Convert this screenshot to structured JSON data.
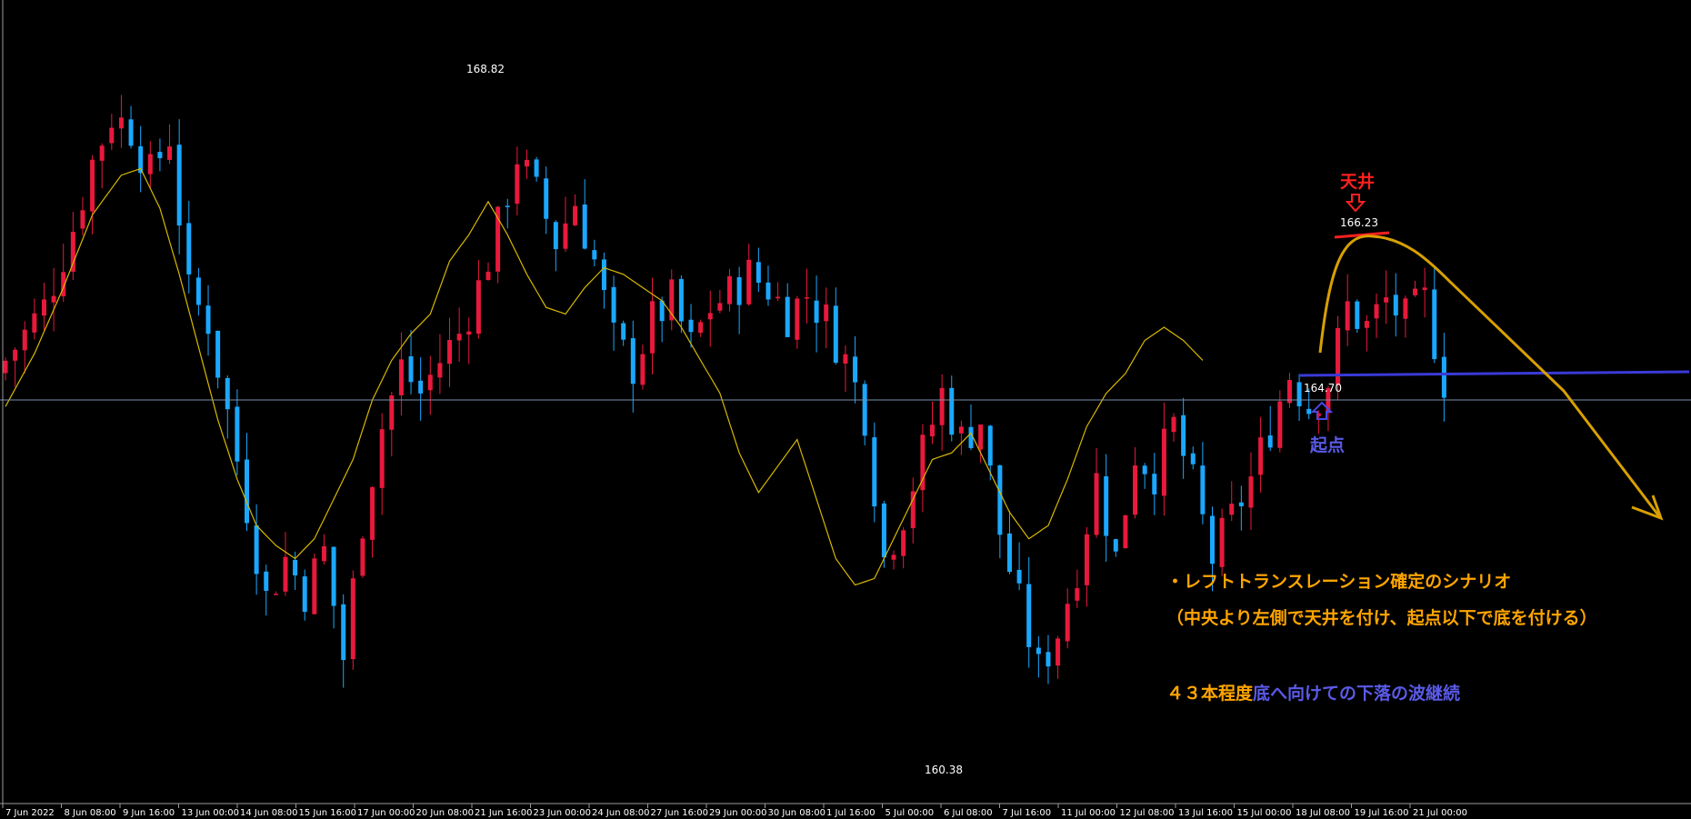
{
  "chart_data": {
    "type": "candlestick",
    "symbol_hint": "",
    "ylim": [
      159.2,
      170.2
    ],
    "x_tick_labels": [
      "7 Jun 2022",
      "8 Jun 08:00",
      "9 Jun 16:00",
      "13 Jun 00:00",
      "14 Jun 08:00",
      "15 Jun 16:00",
      "17 Jun 00:00",
      "20 Jun 08:00",
      "21 Jun 16:00",
      "23 Jun 00:00",
      "24 Jun 08:00",
      "27 Jun 16:00",
      "29 Jun 00:00",
      "30 Jun 08:00",
      "1 Jul 16:00",
      "5 Jul 00:00",
      "6 Jul 08:00",
      "7 Jul 16:00",
      "11 Jul 00:00",
      "12 Jul 08:00",
      "13 Jul 16:00",
      "15 Jul 00:00",
      "18 Jul 08:00",
      "19 Jul 16:00",
      "21 Jul 00:00"
    ],
    "current_price_line": 164.7,
    "close_path": [
      [
        0,
        165.3
      ],
      [
        4,
        166.1
      ],
      [
        7,
        167.3
      ],
      [
        9,
        168.3
      ],
      [
        11,
        169.0
      ],
      [
        13,
        168.8
      ],
      [
        15,
        168.1
      ],
      [
        17,
        168.7
      ],
      [
        19,
        166.3
      ],
      [
        21,
        165.9
      ],
      [
        23,
        164.5
      ],
      [
        25,
        163.1
      ],
      [
        27,
        161.7
      ],
      [
        29,
        162.3
      ],
      [
        31,
        161.8
      ],
      [
        33,
        162.4
      ],
      [
        35,
        160.8
      ],
      [
        37,
        162.9
      ],
      [
        39,
        164.3
      ],
      [
        41,
        165.2
      ],
      [
        43,
        164.8
      ],
      [
        45,
        165.3
      ],
      [
        47,
        165.7
      ],
      [
        49,
        166.4
      ],
      [
        51,
        167.3
      ],
      [
        53,
        168.4
      ],
      [
        55,
        167.8
      ],
      [
        57,
        167.1
      ],
      [
        59,
        167.7
      ],
      [
        61,
        166.8
      ],
      [
        63,
        165.6
      ],
      [
        65,
        165.2
      ],
      [
        67,
        165.9
      ],
      [
        69,
        166.2
      ],
      [
        71,
        165.5
      ],
      [
        73,
        166.1
      ],
      [
        75,
        166.3
      ],
      [
        77,
        166.6
      ],
      [
        79,
        166.4
      ],
      [
        81,
        166.0
      ],
      [
        83,
        166.3
      ],
      [
        85,
        165.9
      ],
      [
        87,
        165.3
      ],
      [
        89,
        164.5
      ],
      [
        91,
        162.3
      ],
      [
        93,
        163.0
      ],
      [
        95,
        163.9
      ],
      [
        97,
        164.8
      ],
      [
        99,
        164.1
      ],
      [
        101,
        164.4
      ],
      [
        103,
        162.7
      ],
      [
        105,
        161.6
      ],
      [
        107,
        160.6
      ],
      [
        109,
        161.2
      ],
      [
        111,
        162.2
      ],
      [
        113,
        163.5
      ],
      [
        115,
        162.3
      ],
      [
        117,
        163.9
      ],
      [
        119,
        163.6
      ],
      [
        121,
        164.3
      ],
      [
        123,
        163.4
      ],
      [
        125,
        162.3
      ],
      [
        127,
        162.9
      ],
      [
        129,
        163.5
      ],
      [
        131,
        164.3
      ],
      [
        133,
        165.1
      ],
      [
        135,
        164.6
      ],
      [
        137,
        165.0
      ],
      [
        139,
        166.1
      ],
      [
        141,
        165.8
      ],
      [
        143,
        166.2
      ],
      [
        145,
        165.9
      ],
      [
        147,
        166.2
      ],
      [
        149,
        165.0
      ]
    ],
    "ma_path": [
      [
        0,
        164.6
      ],
      [
        3,
        165.4
      ],
      [
        6,
        166.4
      ],
      [
        9,
        167.5
      ],
      [
        12,
        168.1
      ],
      [
        14,
        168.2
      ],
      [
        16,
        167.6
      ],
      [
        18,
        166.6
      ],
      [
        20,
        165.5
      ],
      [
        22,
        164.4
      ],
      [
        24,
        163.5
      ],
      [
        26,
        162.8
      ],
      [
        28,
        162.5
      ],
      [
        30,
        162.3
      ],
      [
        32,
        162.6
      ],
      [
        34,
        163.2
      ],
      [
        36,
        163.8
      ],
      [
        38,
        164.7
      ],
      [
        40,
        165.3
      ],
      [
        42,
        165.7
      ],
      [
        44,
        166.0
      ],
      [
        46,
        166.8
      ],
      [
        48,
        167.2
      ],
      [
        50,
        167.7
      ],
      [
        52,
        167.2
      ],
      [
        54,
        166.6
      ],
      [
        56,
        166.1
      ],
      [
        58,
        166.0
      ],
      [
        60,
        166.4
      ],
      [
        62,
        166.7
      ],
      [
        64,
        166.6
      ],
      [
        66,
        166.4
      ],
      [
        68,
        166.2
      ],
      [
        70,
        165.8
      ],
      [
        72,
        165.3
      ],
      [
        74,
        164.8
      ],
      [
        76,
        163.9
      ],
      [
        78,
        163.3
      ],
      [
        80,
        163.7
      ],
      [
        82,
        164.1
      ],
      [
        84,
        163.2
      ],
      [
        86,
        162.3
      ],
      [
        88,
        161.9
      ],
      [
        90,
        162.0
      ],
      [
        92,
        162.6
      ],
      [
        94,
        163.2
      ],
      [
        96,
        163.8
      ],
      [
        98,
        163.9
      ],
      [
        100,
        164.2
      ],
      [
        102,
        163.6
      ],
      [
        104,
        163.0
      ],
      [
        106,
        162.6
      ],
      [
        108,
        162.8
      ],
      [
        110,
        163.5
      ],
      [
        112,
        164.3
      ],
      [
        114,
        164.8
      ],
      [
        116,
        165.1
      ],
      [
        118,
        165.6
      ],
      [
        120,
        165.8
      ],
      [
        122,
        165.6
      ],
      [
        124,
        165.3
      ]
    ],
    "price_labels": [
      {
        "value": "168.82"
      },
      {
        "value": "166.23"
      },
      {
        "value": "164.70"
      },
      {
        "value": "160.38"
      }
    ]
  },
  "annotations": {
    "top_label": "天井",
    "start_label": "起点",
    "scenario_line": "・レフトトランスレーション確定のシナリオ",
    "scenario_detail": "（中央より左側で天井を付け、起点以下で底を付ける）",
    "count_text": "４３本程度",
    "wave_text": "底へ向けての下落の波継続",
    "colors": {
      "bull": "#e8193c",
      "bear": "#1aa8ff",
      "ma": "#d8b800",
      "orange": "#ffa500",
      "blue_text": "#5a5ae8",
      "red_text": "#ff2020",
      "price_line": "#7a8fb0",
      "text": "#ffffff"
    }
  }
}
